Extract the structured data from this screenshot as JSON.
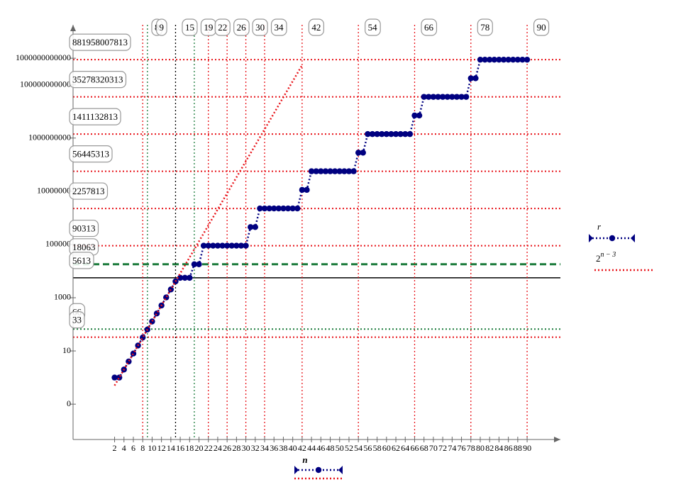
{
  "chart_data": {
    "type": "line",
    "log_y": true,
    "xlim": [
      -6.86,
      97.1
    ],
    "ylim": [
      0.0047,
      18000000000000
    ],
    "x_label": "n",
    "xticks": [
      2,
      4,
      6,
      8,
      10,
      12,
      14,
      16,
      18,
      20,
      22,
      24,
      26,
      28,
      30,
      32,
      34,
      36,
      38,
      40,
      42,
      44,
      46,
      48,
      50,
      52,
      54,
      56,
      58,
      60,
      62,
      64,
      66,
      68,
      70,
      72,
      74,
      76,
      78,
      80,
      82,
      84,
      86,
      88,
      90
    ],
    "yticks": [
      {
        "value": 0.1,
        "label": "0"
      },
      10,
      1000,
      100000,
      10000000,
      1000000000,
      100000000000,
      1000000000000
    ],
    "x": [
      2,
      3,
      4,
      5,
      6,
      7,
      8,
      9,
      10,
      11,
      12,
      13,
      14,
      15,
      16,
      17,
      18,
      19,
      20,
      21,
      22,
      23,
      24,
      25,
      26,
      27,
      28,
      29,
      30,
      31,
      32,
      33,
      34,
      35,
      36,
      37,
      38,
      39,
      40,
      41,
      42,
      43,
      44,
      45,
      46,
      47,
      48,
      49,
      50,
      51,
      52,
      53,
      54,
      55,
      56,
      57,
      58,
      59,
      60,
      61,
      62,
      63,
      64,
      65,
      66,
      67,
      68,
      69,
      70,
      71,
      72,
      73,
      74,
      75,
      76,
      77,
      78,
      79,
      80,
      81,
      82,
      83,
      84,
      85,
      86,
      87,
      88,
      89,
      90
    ],
    "series": [
      {
        "name": "r",
        "color": "#000080",
        "values": [
          1,
          1,
          2,
          4,
          8,
          16,
          32,
          64,
          128,
          256,
          512,
          1024,
          2048,
          4096,
          5613,
          5613,
          5613,
          18063,
          18063,
          90313,
          90313,
          90313,
          90313,
          90313,
          90313,
          90313,
          90313,
          90313,
          90313,
          451563,
          451563,
          2257813,
          2257813,
          2257813,
          2257813,
          2257813,
          2257813,
          2257813,
          2257813,
          2257813,
          11289063,
          11289063,
          56445313,
          56445313,
          56445313,
          56445313,
          56445313,
          56445313,
          56445313,
          56445313,
          56445313,
          56445313,
          282226563,
          282226563,
          1411132813,
          1411132813,
          1411132813,
          1411132813,
          1411132813,
          1411132813,
          1411132813,
          1411132813,
          1411132813,
          1411132813,
          7055664063,
          7055664063,
          35278320313,
          35278320313,
          35278320313,
          35278320313,
          35278320313,
          35278320313,
          35278320313,
          35278320313,
          35278320313,
          35278320313,
          176391601563,
          176391601563,
          881958007813,
          881958007813,
          881958007813,
          881958007813,
          881958007813,
          881958007813,
          881958007813,
          881958007813,
          881958007813,
          881958007813,
          881958007813
        ]
      },
      {
        "name": "2",
        "exponent": "n − 3",
        "color": "#e8141a",
        "x": [
          2,
          42
        ],
        "values": [
          0.5,
          549755813888
        ]
      }
    ],
    "hlines": [
      {
        "value": 881958007813,
        "color": "#e8141a",
        "style": "dotted"
      },
      {
        "value": 35278320313,
        "color": "#e8141a",
        "style": "dotted"
      },
      {
        "value": 1411132813,
        "color": "#e8141a",
        "style": "dotted"
      },
      {
        "value": 56445313,
        "color": "#e8141a",
        "style": "dotted"
      },
      {
        "value": 2257813,
        "color": "#e8141a",
        "style": "dotted"
      },
      {
        "value": 90313,
        "color": "#e8141a",
        "style": "dotted"
      },
      {
        "value": 18063,
        "color": "#1a7a3a",
        "style": "dashed"
      },
      {
        "value": 5613,
        "color": "#000000",
        "style": "solid"
      },
      {
        "value": 66,
        "color": "#1a7a3a",
        "style": "dotted"
      },
      {
        "value": 33,
        "color": "#e8141a",
        "style": "dotted"
      }
    ],
    "vlines": [
      {
        "value": 8,
        "color": "#e8141a"
      },
      {
        "value": 9,
        "color": "#1a7a3a"
      },
      {
        "value": 15,
        "color": "#000000"
      },
      {
        "value": 19,
        "color": "#1a7a3a"
      },
      {
        "value": 22,
        "color": "#e8141a"
      },
      {
        "value": 26,
        "color": "#e8141a"
      },
      {
        "value": 30,
        "color": "#e8141a"
      },
      {
        "value": 34,
        "color": "#e8141a"
      },
      {
        "value": 42,
        "color": "#e8141a"
      },
      {
        "value": 54,
        "color": "#e8141a"
      },
      {
        "value": 66,
        "color": "#e8141a"
      },
      {
        "value": 78,
        "color": "#e8141a"
      },
      {
        "value": 90,
        "color": "#e8141a"
      }
    ],
    "legend": "right"
  }
}
